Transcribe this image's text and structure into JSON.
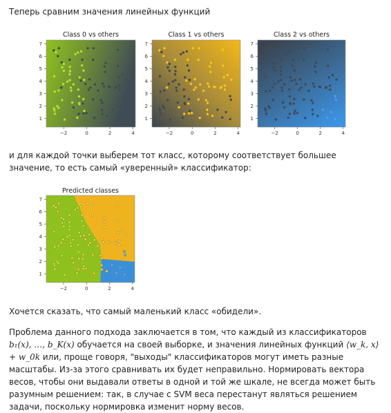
{
  "intro": "Теперь сравним значения линейных функций",
  "mid_text": "и для каждой точки выберем тот класс, которому соответствует большее значение, то есть самый «уверенный» классификатор:",
  "offended_text": "Хочется сказать, что самый маленький класс «обидели».",
  "problem": {
    "line1": "Проблема данного подхода заключается в том, что каждый из классификаторов",
    "math_b": "b₁(x), …, b_K(x)",
    "text2": " обучается на своей выборке, и значения линейных функций ",
    "math_w": "⟨w_k, x⟩ + w_0k",
    "rest": "или, проще говоря, \"выходы\" классификаторов могут иметь разные масштабы. Из-за этого сравнивать их будет неправильно. Нормировать вектора весов, чтобы они выдавали ответы в одной и той же шкале, не всегда может быть разумным решением: так, в случае с SVM веса перестанут являться решением задачи, поскольку нормировка изменит норму весов."
  },
  "colors": {
    "green": "#8ec21f",
    "orange": "#f2b51c",
    "blue": "#3a8fd9",
    "dark": "#4a5560"
  },
  "chart_data": [
    {
      "type": "scatter",
      "title": "Class 0 vs others",
      "x_ticks": [
        "−2",
        "0",
        "2",
        "4"
      ],
      "y_ticks": [
        "1",
        "2",
        "3",
        "4",
        "5",
        "6",
        "7"
      ],
      "xlim": [
        -3.5,
        4.2
      ],
      "ylim": [
        0.3,
        7.3
      ],
      "background": "gradient green (left) to dark (right)"
    },
    {
      "type": "scatter",
      "title": "Class 1 vs others",
      "x_ticks": [
        "−2",
        "0",
        "2",
        "4"
      ],
      "y_ticks": [
        "1",
        "2",
        "3",
        "4",
        "5",
        "6",
        "7"
      ],
      "xlim": [
        -3.5,
        4.2
      ],
      "ylim": [
        0.3,
        7.3
      ],
      "background": "gradient dark (lower-left) to orange (upper-right)"
    },
    {
      "type": "scatter",
      "title": "Class 2 vs others",
      "x_ticks": [
        "−2",
        "0",
        "2",
        "4"
      ],
      "y_ticks": [
        "1",
        "2",
        "3",
        "4",
        "5",
        "6",
        "7"
      ],
      "xlim": [
        -3.5,
        4.2
      ],
      "ylim": [
        0.3,
        7.3
      ],
      "background": "gradient dark (top) to blue (bottom-right)"
    },
    {
      "type": "scatter",
      "title": "Predicted classes",
      "x_ticks": [
        "−2",
        "0",
        "2",
        "4"
      ],
      "y_ticks": [
        "1",
        "2",
        "3",
        "4",
        "5",
        "6",
        "7"
      ],
      "xlim": [
        -3.5,
        4.2
      ],
      "ylim": [
        0.3,
        7.3
      ],
      "background": "regions: green (left), orange (upper-right), blue (lower-right)"
    }
  ]
}
